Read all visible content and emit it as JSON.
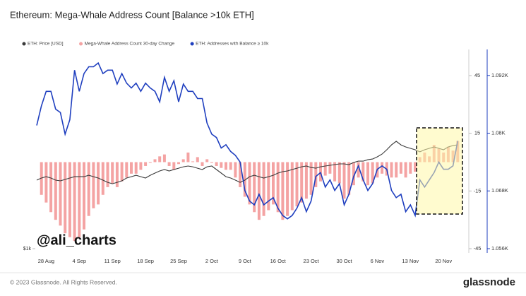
{
  "chart_data": {
    "type": "combo",
    "title": "Ethereum: Mega-Whale Address Count [Balance >10k ETH]",
    "watermark": "@ali_charts",
    "footer": "© 2023 Glassnode. All Rights Reserved.",
    "brand": "glassnode",
    "categories": [
      null,
      null,
      "28 Aug",
      null,
      null,
      null,
      null,
      null,
      null,
      "4 Sep",
      null,
      null,
      null,
      null,
      null,
      null,
      "11 Sep",
      null,
      null,
      null,
      null,
      null,
      null,
      "18 Sep",
      null,
      null,
      null,
      null,
      null,
      null,
      "25 Sep",
      null,
      null,
      null,
      null,
      null,
      null,
      "2 Oct",
      null,
      null,
      null,
      null,
      null,
      null,
      "9 Oct",
      null,
      null,
      null,
      null,
      null,
      null,
      "16 Oct",
      null,
      null,
      null,
      null,
      null,
      null,
      "23 Oct",
      null,
      null,
      null,
      null,
      null,
      null,
      "30 Oct",
      null,
      null,
      null,
      null,
      null,
      null,
      "6 Nov",
      null,
      null,
      null,
      null,
      null,
      null,
      "13 Nov",
      null,
      null,
      null,
      null,
      null,
      null,
      "20 Nov",
      null,
      null,
      null
    ],
    "ylim": [
      1000,
      3000
    ],
    "yticks": [
      {
        "value": 1000,
        "label": "$1k"
      }
    ],
    "y2lim": [
      -45,
      58.6
    ],
    "y2ticks": [
      45,
      15,
      -15,
      -45
    ],
    "y3lim": [
      1056,
      1097.4
    ],
    "y3ticks": [
      {
        "value": 1092,
        "label": "1.092K"
      },
      {
        "value": 1080,
        "label": "1.08K"
      },
      {
        "value": 1068,
        "label": "1.068K"
      },
      {
        "value": 1056,
        "label": "1.056K"
      }
    ],
    "series": [
      {
        "name": "ETH: Price [USD]",
        "type": "line",
        "axis": "y",
        "color": "#3a3a3a",
        "values": [
          1688,
          1709,
          1723,
          1709,
          1688,
          1681,
          1695,
          1709,
          1723,
          1723,
          1723,
          1737,
          1723,
          1709,
          1688,
          1666,
          1652,
          1666,
          1681,
          1709,
          1723,
          1737,
          1723,
          1709,
          1737,
          1759,
          1780,
          1794,
          1780,
          1794,
          1808,
          1822,
          1830,
          1822,
          1808,
          1794,
          1822,
          1830,
          1794,
          1759,
          1723,
          1709,
          1688,
          1666,
          1688,
          1723,
          1737,
          1723,
          1709,
          1723,
          1737,
          1759,
          1773,
          1780,
          1794,
          1808,
          1822,
          1830,
          1815,
          1808,
          1822,
          1830,
          1837,
          1844,
          1851,
          1851,
          1844,
          1865,
          1879,
          1879,
          1893,
          1900,
          1922,
          1950,
          1993,
          2042,
          2078,
          2042,
          2021,
          2007,
          1993,
          1972,
          1993,
          2007,
          2021,
          2007,
          1993,
          2021,
          2035,
          2042
        ]
      },
      {
        "name": "Mega-Whale Address Count 30-day Change",
        "type": "bar",
        "axis": "y2",
        "color": "#f4a3a3",
        "values": [
          null,
          -17,
          -21,
          -26,
          -30,
          -33,
          -37,
          -39,
          -41,
          -39,
          -35,
          -28,
          -24,
          -22,
          -17,
          -13,
          -11,
          -13,
          -10,
          -8,
          -6,
          -6,
          -4,
          -2,
          -0.4,
          1.5,
          3,
          4,
          -2,
          -4,
          -1,
          1.5,
          5,
          0.4,
          2.6,
          -2,
          1.5,
          -0.4,
          -2,
          -3,
          -4,
          -4,
          -8,
          -13,
          -18,
          -22,
          -26,
          -30,
          -28,
          -25,
          -22,
          -26,
          -30,
          -28,
          -25,
          -23,
          -21,
          -19,
          -17,
          -13,
          -10,
          -7,
          -6,
          -10,
          -11,
          -19,
          -17,
          -12,
          -8,
          -10,
          -12,
          -11,
          -8,
          -6,
          -7,
          -8,
          -8,
          -6,
          -8,
          -6,
          -5,
          2.6,
          5,
          3,
          9,
          7,
          5,
          8,
          6,
          11
        ]
      },
      {
        "name": "ETH: Addresses with Balance ≥ 10k",
        "type": "line",
        "axis": "y3",
        "color": "#1f3fbf",
        "values": [
          1081.6,
          1085.7,
          1088.7,
          1088.7,
          1085.0,
          1084.3,
          1079.8,
          1082.8,
          1093.1,
          1088.7,
          1092.4,
          1093.8,
          1093.8,
          1094.6,
          1092.4,
          1093.1,
          1093.1,
          1090.2,
          1092.4,
          1090.4,
          1089.4,
          1090.4,
          1088.7,
          1090.4,
          1089.4,
          1088.7,
          1086.5,
          1091.6,
          1088.7,
          1090.9,
          1086.5,
          1090.2,
          1088.7,
          1088.7,
          1087.2,
          1087.2,
          1082.1,
          1079.8,
          1079.1,
          1076.9,
          1077.6,
          1076.2,
          1075.4,
          1074.0,
          1068.1,
          1065.9,
          1065.1,
          1067.3,
          1065.1,
          1065.9,
          1066.6,
          1064.4,
          1062.9,
          1062.2,
          1062.9,
          1064.4,
          1066.6,
          1063.7,
          1065.9,
          1071.0,
          1071.8,
          1068.8,
          1070.3,
          1068.1,
          1069.5,
          1065.1,
          1067.3,
          1071.0,
          1073.2,
          1070.3,
          1068.1,
          1069.5,
          1072.5,
          1073.2,
          1072.5,
          1068.1,
          1066.6,
          1067.3,
          1063.7,
          1065.1,
          1062.9,
          1070.3,
          1068.8,
          1070.3,
          1071.8,
          1074.0,
          1072.5,
          1072.5,
          1073.2,
          1078.4
        ]
      }
    ]
  }
}
